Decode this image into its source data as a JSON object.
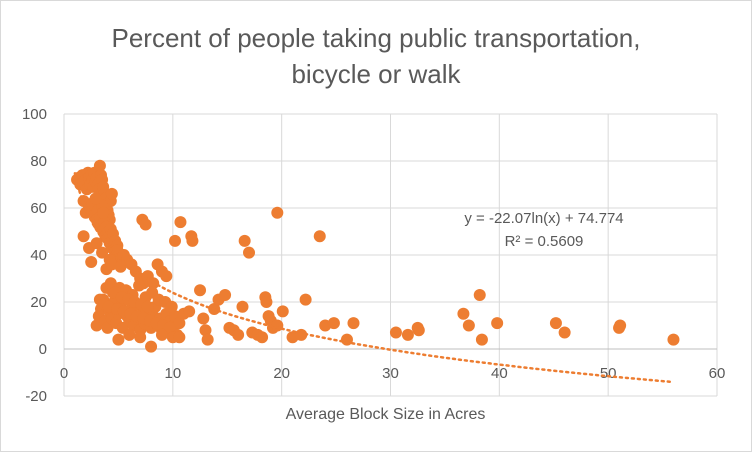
{
  "chart_data": {
    "type": "scatter",
    "title_lines": [
      "Percent of people taking public transportation,",
      "bicycle or walk"
    ],
    "xlabel": "Average Block Size in Acres",
    "ylabel": "",
    "xlim": [
      0,
      60
    ],
    "ylim": [
      -20,
      100
    ],
    "x_ticks": [
      0,
      10,
      20,
      30,
      40,
      50,
      60
    ],
    "y_ticks": [
      -20,
      0,
      20,
      40,
      60,
      80,
      100
    ],
    "grid": true,
    "colors": {
      "points": "#ED7D31",
      "trendline": "#ED7D31",
      "grid": "#d9d9d9",
      "text": "#595959"
    },
    "trendline": {
      "type": "logarithmic",
      "a": -22.07,
      "b": 74.774,
      "x_range": [
        1,
        56
      ],
      "equation": "y = -22.07ln(x) + 74.774",
      "r_squared": "R² = 0.5609"
    },
    "series": [
      {
        "points": [
          [
            1.2,
            72
          ],
          [
            1.4,
            73
          ],
          [
            1.5,
            70
          ],
          [
            1.7,
            74
          ],
          [
            1.8,
            71
          ],
          [
            2.0,
            72
          ],
          [
            2.1,
            68
          ],
          [
            2.2,
            75
          ],
          [
            2.3,
            73
          ],
          [
            2.4,
            70
          ],
          [
            2.5,
            74
          ],
          [
            2.6,
            72
          ],
          [
            2.7,
            69
          ],
          [
            2.8,
            75
          ],
          [
            2.9,
            71
          ],
          [
            3.0,
            73
          ],
          [
            3.1,
            70
          ],
          [
            3.2,
            68
          ],
          [
            3.3,
            78
          ],
          [
            3.4,
            74
          ],
          [
            3.5,
            72
          ],
          [
            3.6,
            69
          ],
          [
            3.7,
            66
          ],
          [
            3.8,
            64
          ],
          [
            3.9,
            61
          ],
          [
            4.0,
            59
          ],
          [
            4.1,
            57
          ],
          [
            4.2,
            55
          ],
          [
            4.3,
            63
          ],
          [
            4.4,
            66
          ],
          [
            1.8,
            63
          ],
          [
            2.0,
            58
          ],
          [
            2.3,
            60
          ],
          [
            2.6,
            62
          ],
          [
            2.8,
            57
          ],
          [
            3.0,
            55
          ],
          [
            3.2,
            53
          ],
          [
            3.4,
            52
          ],
          [
            3.6,
            50
          ],
          [
            3.8,
            48
          ],
          [
            4.0,
            47
          ],
          [
            4.2,
            45
          ],
          [
            4.4,
            43
          ],
          [
            4.6,
            42
          ],
          [
            4.8,
            40
          ],
          [
            5.0,
            39
          ],
          [
            5.2,
            38
          ],
          [
            5.4,
            37
          ],
          [
            3.1,
            59
          ],
          [
            3.3,
            56
          ],
          [
            3.5,
            61
          ],
          [
            3.7,
            54
          ],
          [
            3.9,
            52
          ],
          [
            4.1,
            50
          ],
          [
            4.3,
            51
          ],
          [
            4.5,
            49
          ],
          [
            4.7,
            46
          ],
          [
            4.9,
            44
          ],
          [
            2.9,
            64
          ],
          [
            3.6,
            58
          ],
          [
            1.8,
            48
          ],
          [
            2.3,
            43
          ],
          [
            2.5,
            37
          ],
          [
            3.0,
            45
          ],
          [
            3.5,
            41
          ],
          [
            3.9,
            34
          ],
          [
            4.2,
            38
          ],
          [
            4.4,
            36
          ],
          [
            4.9,
            42
          ],
          [
            5.2,
            35
          ],
          [
            5.5,
            40
          ],
          [
            5.8,
            38
          ],
          [
            6.2,
            36
          ],
          [
            6.6,
            33
          ],
          [
            7.0,
            30
          ],
          [
            7.3,
            28
          ],
          [
            7.7,
            31
          ],
          [
            8.2,
            28
          ],
          [
            8.6,
            36
          ],
          [
            9.0,
            33
          ],
          [
            9.4,
            31
          ],
          [
            7.2,
            55
          ],
          [
            7.5,
            53
          ],
          [
            10.2,
            46
          ],
          [
            10.7,
            54
          ],
          [
            11.7,
            48
          ],
          [
            11.8,
            46
          ],
          [
            16.6,
            46
          ],
          [
            17.0,
            41
          ],
          [
            19.6,
            58
          ],
          [
            23.5,
            48
          ],
          [
            3.0,
            10
          ],
          [
            3.2,
            14
          ],
          [
            3.4,
            17
          ],
          [
            3.6,
            21
          ],
          [
            3.8,
            12
          ],
          [
            4.0,
            9
          ],
          [
            4.2,
            16
          ],
          [
            4.4,
            13
          ],
          [
            4.6,
            20
          ],
          [
            4.8,
            11
          ],
          [
            5.0,
            15
          ],
          [
            5.2,
            18
          ],
          [
            5.4,
            9
          ],
          [
            5.6,
            22
          ],
          [
            5.8,
            14
          ],
          [
            6.0,
            12
          ],
          [
            6.2,
            17
          ],
          [
            6.4,
            10
          ],
          [
            6.6,
            13
          ],
          [
            6.8,
            19
          ],
          [
            7.0,
            8
          ],
          [
            7.2,
            15
          ],
          [
            7.4,
            11
          ],
          [
            7.6,
            16
          ],
          [
            7.8,
            12
          ],
          [
            8.0,
            9
          ],
          [
            8.2,
            14
          ],
          [
            8.4,
            18
          ],
          [
            8.6,
            10
          ],
          [
            8.8,
            13
          ],
          [
            9.0,
            8
          ],
          [
            9.2,
            11
          ],
          [
            9.4,
            15
          ],
          [
            9.6,
            7
          ],
          [
            9.8,
            12
          ],
          [
            10.0,
            9
          ],
          [
            10.2,
            14
          ],
          [
            10.4,
            6
          ],
          [
            10.6,
            11
          ],
          [
            4.5,
            24
          ],
          [
            5.1,
            26
          ],
          [
            5.7,
            25
          ],
          [
            6.3,
            23
          ],
          [
            6.9,
            27
          ],
          [
            7.5,
            22
          ],
          [
            8.1,
            24
          ],
          [
            8.7,
            21
          ],
          [
            9.3,
            20
          ],
          [
            9.9,
            18
          ],
          [
            3.9,
            26
          ],
          [
            4.3,
            28
          ],
          [
            4.7,
            24
          ],
          [
            5.3,
            22
          ],
          [
            5.9,
            21
          ],
          [
            6.5,
            20
          ],
          [
            7.1,
            19
          ],
          [
            7.7,
            18
          ],
          [
            3.3,
            21
          ],
          [
            3.7,
            19
          ],
          [
            4.1,
            18
          ],
          [
            4.9,
            17
          ],
          [
            5.5,
            16
          ],
          [
            6.1,
            15
          ],
          [
            6.7,
            14
          ],
          [
            7.3,
            13
          ],
          [
            7.9,
            12
          ],
          [
            8.5,
            11
          ],
          [
            9.1,
            10
          ],
          [
            9.7,
            9
          ],
          [
            5.0,
            4
          ],
          [
            6.0,
            6
          ],
          [
            7.0,
            5
          ],
          [
            8.0,
            1
          ],
          [
            9.0,
            6
          ],
          [
            10.0,
            5
          ],
          [
            10.6,
            5
          ],
          [
            11.0,
            15
          ],
          [
            11.5,
            16
          ],
          [
            12.5,
            25
          ],
          [
            12.8,
            13
          ],
          [
            13.0,
            8
          ],
          [
            13.2,
            4
          ],
          [
            13.8,
            17
          ],
          [
            14.2,
            21
          ],
          [
            14.8,
            23
          ],
          [
            15.2,
            9
          ],
          [
            15.6,
            8
          ],
          [
            16.0,
            6
          ],
          [
            16.4,
            18
          ],
          [
            17.3,
            7
          ],
          [
            17.8,
            6
          ],
          [
            18.2,
            5
          ],
          [
            18.5,
            22
          ],
          [
            18.6,
            20
          ],
          [
            18.8,
            14
          ],
          [
            19.0,
            12
          ],
          [
            19.2,
            9
          ],
          [
            19.6,
            10
          ],
          [
            20.1,
            16
          ],
          [
            21.0,
            5
          ],
          [
            21.8,
            6
          ],
          [
            22.2,
            21
          ],
          [
            24.0,
            10
          ],
          [
            24.8,
            11
          ],
          [
            26.0,
            4
          ],
          [
            26.6,
            11
          ],
          [
            30.5,
            7
          ],
          [
            31.6,
            6
          ],
          [
            32.5,
            9
          ],
          [
            32.6,
            8
          ],
          [
            36.7,
            15
          ],
          [
            37.2,
            10
          ],
          [
            38.2,
            23
          ],
          [
            38.4,
            4
          ],
          [
            39.8,
            11
          ],
          [
            45.2,
            11
          ],
          [
            46.0,
            7
          ],
          [
            51.0,
            9
          ],
          [
            51.1,
            10
          ],
          [
            56.0,
            4
          ]
        ]
      }
    ]
  }
}
